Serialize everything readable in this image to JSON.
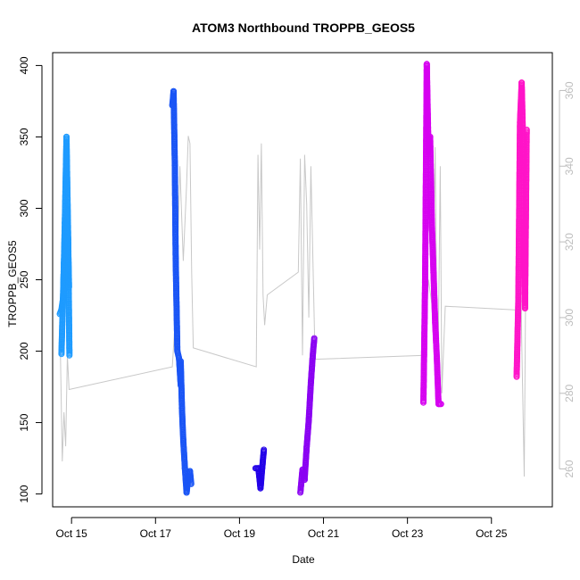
{
  "chart_data": {
    "type": "scatter",
    "title": "ATOM3 Northbound TROPPB_GEOS5",
    "xlabel": "Date",
    "ylabel": "TROPPB_GEOS5",
    "xlim": [
      14.55,
      26.45
    ],
    "ylim": [
      91,
      409
    ],
    "y2lim": [
      250,
      370
    ],
    "x_ticks": [
      15,
      17,
      19,
      21,
      23,
      25
    ],
    "x_tick_labels": [
      "Oct 15",
      "Oct 17",
      "Oct 19",
      "Oct 21",
      "Oct 23",
      "Oct 25"
    ],
    "y_ticks": [
      100,
      150,
      200,
      250,
      300,
      350,
      400
    ],
    "y_tick_labels": [
      "100",
      "150",
      "200",
      "250",
      "300",
      "350",
      "400"
    ],
    "y2_ticks": [
      260,
      280,
      300,
      320,
      340,
      360
    ],
    "y2_tick_labels": [
      "260",
      "280",
      "300",
      "320",
      "340",
      "360"
    ],
    "colors": {
      "line": "#c8c8c8",
      "frame": "#000000",
      "right_axis": "#bdbdbd"
    },
    "series": [
      {
        "color": "#1e9bff",
        "segments": [
          {
            "x": [
              14.72,
              14.76,
              14.8,
              14.84,
              14.88,
              14.92,
              14.95
            ],
            "y": [
              226,
              229,
              237,
              290,
              350,
              278,
              197
            ]
          },
          {
            "x": [
              14.76,
              14.82,
              14.9,
              14.94
            ],
            "y": [
              198,
              262,
              300,
              245
            ]
          }
        ]
      },
      {
        "color": "#1a55f5",
        "segments": [
          {
            "x": [
              17.4,
              17.43,
              17.46,
              17.48,
              17.52,
              17.56,
              17.6
            ],
            "y": [
              372,
              382,
              330,
              265,
              200,
              195,
              176
            ]
          },
          {
            "x": [
              17.6,
              17.63,
              17.66,
              17.7,
              17.74,
              17.78,
              17.82,
              17.85
            ],
            "y": [
              193,
              160,
              138,
              118,
              101,
              112,
              116,
              107
            ]
          }
        ]
      },
      {
        "color": "#2200e8",
        "segments": [
          {
            "x": [
              19.38,
              19.45,
              19.5,
              19.54,
              19.58
            ],
            "y": [
              118,
              118,
              104,
              118,
              131
            ]
          }
        ]
      },
      {
        "color": "#8a00f2",
        "segments": [
          {
            "x": [
              20.45,
              20.5,
              20.55,
              20.6,
              20.65,
              20.7,
              20.74,
              20.78
            ],
            "y": [
              101,
              117,
              110,
              133,
              152,
              178,
              195,
              209
            ]
          }
        ]
      },
      {
        "color": "#d600f0",
        "segments": [
          {
            "x": [
              23.38,
              23.42,
              23.46,
              23.5,
              23.54,
              23.58,
              23.62,
              23.66,
              23.7,
              23.74,
              23.8
            ],
            "y": [
              164,
              248,
              401,
              340,
              350,
              290,
              255,
              220,
              195,
              163,
              163
            ]
          }
        ]
      },
      {
        "color": "#ff14c8",
        "segments": [
          {
            "x": [
              25.6,
              25.64,
              25.68,
              25.72,
              25.76,
              25.8,
              25.84
            ],
            "y": [
              182,
              235,
              360,
              388,
              338,
              230,
              355
            ]
          }
        ]
      }
    ],
    "secondary_line": {
      "color": "#c8c8c8",
      "x": [
        14.72,
        14.78,
        14.82,
        14.86,
        14.9,
        14.94,
        17.4,
        17.5,
        17.58,
        17.66,
        17.74,
        17.78,
        17.82,
        17.86,
        17.9,
        19.4,
        19.44,
        19.48,
        19.52,
        19.56,
        19.6,
        19.66,
        20.4,
        20.45,
        20.5,
        20.55,
        20.6,
        20.65,
        20.7,
        20.8,
        23.4,
        23.5,
        23.6,
        23.66,
        23.72,
        23.78,
        23.82,
        23.9,
        25.6,
        25.66,
        25.72,
        25.78,
        25.84
      ],
      "y2": [
        300,
        262,
        275,
        266,
        290,
        281,
        287,
        305,
        340,
        315,
        335,
        348,
        346,
        312,
        292,
        287,
        343,
        318,
        346,
        306,
        298,
        306,
        312,
        342,
        290,
        343,
        330,
        300,
        340,
        289,
        290,
        310,
        302,
        345,
        278,
        340,
        280,
        303,
        302,
        355,
        295,
        258,
        346
      ]
    }
  }
}
